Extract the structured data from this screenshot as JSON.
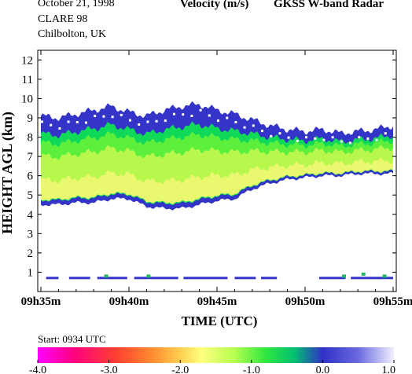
{
  "header": {
    "date": "October  21, 1998",
    "campaign": "CLARE 98",
    "site": "Chilbolton, UK",
    "quantity": "Velocity (m/s)",
    "instrument": "GKSS  W-band Radar"
  },
  "footer": {
    "start": "Start: 0934 UTC"
  },
  "chart_data": {
    "type": "heatmap",
    "title": "Velocity (m/s)",
    "xlabel": "TIME (UTC)",
    "ylabel": "HEIGHT AGL (km)",
    "x_range": [
      "09h35m",
      "09h55m"
    ],
    "xticks": [
      "09h35m",
      "09h40m",
      "09h45m",
      "09h50m",
      "09h55m"
    ],
    "ylim": [
      0,
      12.5
    ],
    "yticks": [
      1,
      2,
      3,
      4,
      5,
      6,
      7,
      8,
      9,
      10,
      11,
      12
    ],
    "grid": false,
    "colorbar": {
      "min": -4.0,
      "max": 1.0,
      "ticks": [
        "-4.0",
        "-3.0",
        "-2.0",
        "-1.0",
        "0.0",
        "1.0"
      ],
      "colors": [
        "#ff00ff",
        "#ff1f5a",
        "#ff7a2a",
        "#ffd25a",
        "#ffff80",
        "#c8ff50",
        "#50f050",
        "#10e050",
        "#3030c8",
        "#6060e0",
        "#e8e8ff"
      ]
    },
    "cloud_layer": {
      "minutes": [
        0,
        1,
        2,
        3,
        4,
        5,
        6,
        7,
        8,
        9,
        10,
        11,
        12,
        13,
        14,
        15,
        16,
        17,
        18,
        19,
        20
      ],
      "top_km": [
        9.1,
        9.0,
        9.2,
        9.4,
        9.6,
        9.3,
        9.1,
        9.4,
        9.6,
        9.7,
        9.4,
        9.2,
        8.9,
        8.6,
        8.4,
        8.3,
        8.4,
        8.2,
        8.3,
        8.4,
        8.6
      ],
      "base_km": [
        4.5,
        4.5,
        4.6,
        4.6,
        4.8,
        4.8,
        4.4,
        4.3,
        4.3,
        4.5,
        4.7,
        4.8,
        5.3,
        5.6,
        5.8,
        5.9,
        6.0,
        6.0,
        6.1,
        6.1,
        6.1
      ]
    },
    "low_echo": {
      "height_km": 0.7,
      "note": "sparse near-surface returns"
    }
  }
}
